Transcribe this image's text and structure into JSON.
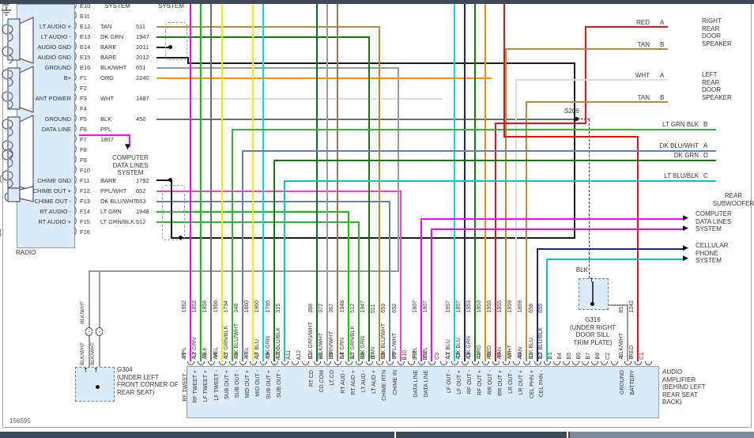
{
  "page": {
    "drawing_number": "156595",
    "system_label_1": "SYSTEM",
    "system_label_2": "SYSTEM"
  },
  "colors": {
    "PPL": "#ff00ff",
    "PPL/WHT": "#ff3fd0",
    "TAN": "#b08d3f",
    "DK GRN": "#0a7d0a",
    "LT GRN": "#00cc00",
    "LT GRN/BLK": "#2db82d",
    "LT GRN BLK": "#2db82d",
    "BARE": "#1a1a1a",
    "BLK": "#6e6e6e",
    "BLK/WHT": "#9a9a9a",
    "ORG": "#ff8c00",
    "WHT": "#dedede",
    "YEL": "#ffe800",
    "LT BLU": "#00dcdc",
    "LT BLU/BLK": "#00c8c8",
    "DK BLU": "#1a2490",
    "DK BLU/WHT": "#6b7fae",
    "DK GRN/WHT": "#0a6e2a",
    "BRN/WHT": "#a07850",
    "RED": "#e81010"
  },
  "radio": {
    "label": "RADIO",
    "computer_note": "COMPUTER\nDATA LINES\nSYSTEM",
    "pins": [
      {
        "id": "E10",
        "label": "",
        "t1": "",
        "t2": ""
      },
      {
        "id": "E11",
        "label": "",
        "t1": "",
        "t2": ""
      },
      {
        "id": "E12",
        "label": "LT AUDIO +",
        "t1": "TAN",
        "t2": "511"
      },
      {
        "id": "E13",
        "label": "LT AUDIO -",
        "t1": "DK GRN",
        "t2": "1947"
      },
      {
        "id": "E14",
        "label": "AUDIO GND",
        "t1": "BARE",
        "t2": "2011"
      },
      {
        "id": "E15",
        "label": "AUDIO GND",
        "t1": "BARE",
        "t2": "2012"
      },
      {
        "id": "E16",
        "label": "GROUND",
        "t1": "BLK/WHT",
        "t2": "651"
      },
      {
        "id": "F1",
        "label": "B+",
        "t1": "ORG",
        "t2": "2240"
      },
      {
        "id": "F2",
        "label": "",
        "t1": "",
        "t2": ""
      },
      {
        "id": "F3",
        "label": "ANT POWER",
        "t1": "WHT",
        "t2": "1487"
      },
      {
        "id": "F4",
        "label": "",
        "t1": "",
        "t2": ""
      },
      {
        "id": "F5",
        "label": "GROUND",
        "t1": "BLK",
        "t2": "450"
      },
      {
        "id": "F6",
        "label": "DATA LINE",
        "t1": "PPL",
        "t2": ""
      },
      {
        "id": "F7",
        "label": "",
        "t1": "1807",
        "t2": ""
      },
      {
        "id": "F8",
        "label": "",
        "t1": "",
        "t2": ""
      },
      {
        "id": "F9",
        "label": "",
        "t1": "",
        "t2": ""
      },
      {
        "id": "F10",
        "label": "",
        "t1": "",
        "t2": ""
      },
      {
        "id": "F11",
        "label": "CHIME GND",
        "t1": "BARE",
        "t2": "1792"
      },
      {
        "id": "F12",
        "label": "CHIME OUT +",
        "t1": "PPL/WHT",
        "t2": "652"
      },
      {
        "id": "F13",
        "label": "CHIME OUT -",
        "t1": "DK BLU/WHT",
        "t2": "653"
      },
      {
        "id": "F14",
        "label": "RT AUDIO -",
        "t1": "LT GRN",
        "t2": "1948"
      },
      {
        "id": "F15",
        "label": "RT AUDIO +",
        "t1": "LT GRN/BLK",
        "t2": "512"
      },
      {
        "id": "F16",
        "label": "",
        "t1": "",
        "t2": ""
      }
    ]
  },
  "amplifier": {
    "label": "AUDIO\nAMPLIFIER\n(BEHIND LEFT\nREAR SEAT\nBACK)",
    "pins": [
      {
        "id": "A1",
        "signal": "RF TWEET -",
        "color": "PPL",
        "circuit": "1952"
      },
      {
        "id": "A2",
        "signal": "RF TWEET +",
        "color": "LT GRN",
        "circuit": "1852"
      },
      {
        "id": "A3",
        "signal": "LF TWEET +",
        "color": "BLK",
        "circuit": "1858"
      },
      {
        "id": "A4",
        "signal": "LF TWEET -",
        "color": "YEL",
        "circuit": "1956"
      },
      {
        "id": "A5",
        "signal": "SUB OUT +",
        "color": "LT GRN/BLK",
        "circuit": "1794"
      },
      {
        "id": "A6",
        "signal": "SUB OUT -",
        "color": "DK BLU/WHT",
        "circuit": "348"
      },
      {
        "id": "A7",
        "signal": "MID OUT +",
        "color": "YEL",
        "circuit": "1860"
      },
      {
        "id": "A8",
        "signal": "MID OUT -",
        "color": "LT BLU",
        "circuit": "1960"
      },
      {
        "id": "A9",
        "signal": "SUB OUT +",
        "color": "DK GRN",
        "circuit": "1795"
      },
      {
        "id": "A10",
        "signal": "SUB OUT -",
        "color": "LT BLU/BLK",
        "circuit": "315"
      },
      {
        "id": "A11",
        "signal": "",
        "color": "",
        "circuit": ""
      },
      {
        "id": "A12",
        "signal": "",
        "color": "",
        "circuit": ""
      },
      {
        "id": "B1",
        "signal": "RT CD",
        "color": "DK GRN/WHT",
        "circuit": "368"
      },
      {
        "id": "B2",
        "signal": "CD COM",
        "color": "BLK/WHT",
        "circuit": "372"
      },
      {
        "id": "B3",
        "signal": "LT CD",
        "color": "BRN/WHT",
        "circuit": "367"
      },
      {
        "id": "B4",
        "signal": "RT AUD -",
        "color": "LT GRN",
        "circuit": "1948"
      },
      {
        "id": "B5",
        "signal": "RT AUD +",
        "color": "LT GRN/BLK",
        "circuit": "512"
      },
      {
        "id": "B6",
        "signal": "LT AUD -",
        "color": "DK GRN",
        "circuit": "1947"
      },
      {
        "id": "B7",
        "signal": "LT AUD +",
        "color": "TAN",
        "circuit": "511"
      },
      {
        "id": "B8",
        "signal": "CHIME RTN",
        "color": "DK BLU/WHT",
        "circuit": "653"
      },
      {
        "id": "B9",
        "signal": "CHIME IN",
        "color": "PPL/WHT",
        "circuit": "652"
      },
      {
        "id": "B10",
        "signal": "",
        "color": "",
        "circuit": ""
      },
      {
        "id": "B11",
        "signal": "DATA LINE",
        "color": "PPL",
        "circuit": "1807"
      },
      {
        "id": "B12",
        "signal": "DATA LINE",
        "color": "PPL",
        "circuit": "1807"
      },
      {
        "id": "C3",
        "signal": "",
        "color": "",
        "circuit": ""
      },
      {
        "id": "A1",
        "signal": "LF OUT -",
        "color": "LT BLU",
        "circuit": "1957"
      },
      {
        "id": "A2",
        "signal": "LF OUT +",
        "color": "DK BLU",
        "circuit": "1857"
      },
      {
        "id": "A3",
        "signal": "RF OUT -",
        "color": "DK GRN",
        "circuit": "1953"
      },
      {
        "id": "A4",
        "signal": "RF OUT +",
        "color": "ORG",
        "circuit": "1853"
      },
      {
        "id": "A5",
        "signal": "RR OUT -",
        "color": "RED",
        "circuit": "1955"
      },
      {
        "id": "A6",
        "signal": "RR OUT +",
        "color": "TAN",
        "circuit": "1855"
      },
      {
        "id": "A7",
        "signal": "LR OUT -",
        "color": "WHT",
        "circuit": "1959"
      },
      {
        "id": "A8",
        "signal": "LR OUT +",
        "color": "TAN",
        "circuit": "1859"
      },
      {
        "id": "B1",
        "signal": "CEL PHN +",
        "color": "DK BLU",
        "circuit": "658"
      },
      {
        "id": "B2",
        "signal": "CEL PHN -",
        "color": "LT BLU/BLK",
        "circuit": "659"
      },
      {
        "id": "B3",
        "signal": "",
        "color": "",
        "circuit": ""
      },
      {
        "id": "B4",
        "signal": "",
        "color": "",
        "circuit": ""
      },
      {
        "id": "B5",
        "signal": "",
        "color": "",
        "circuit": ""
      },
      {
        "id": "B6",
        "signal": "",
        "color": "",
        "circuit": ""
      },
      {
        "id": "B7",
        "signal": "",
        "color": "",
        "circuit": ""
      },
      {
        "id": "B8",
        "signal": "",
        "color": "",
        "circuit": ""
      },
      {
        "id": "C2",
        "signal": "",
        "color": "",
        "circuit": ""
      },
      {
        "id": "A",
        "signal": "GROUND",
        "color": "BLK/WHT",
        "circuit": "851"
      },
      {
        "id": "B",
        "signal": "BATTERY",
        "color": "RED",
        "circuit": "1242"
      },
      {
        "id": "C1",
        "signal": "",
        "color": "",
        "circuit": ""
      }
    ]
  },
  "speakers": {
    "right_rear": {
      "label": "RIGHT\nREAR\nDOOR\nSPEAKER",
      "wires": [
        {
          "name": "RED",
          "pin": "A"
        },
        {
          "name": "TAN",
          "pin": "B"
        }
      ]
    },
    "left_rear": {
      "label": "LEFT\nREAR\nDOOR\nSPEAKER",
      "wires": [
        {
          "name": "WHT",
          "pin": "A"
        },
        {
          "name": "TAN",
          "pin": "B"
        }
      ]
    },
    "subwoofer": {
      "label": "REAR\nSUBWOOFER",
      "wires": [
        {
          "name": "LT GRN BLK",
          "pin": "B"
        },
        {
          "name": "DK BLU/WHT",
          "pin": "A"
        },
        {
          "name": "DK GRN",
          "pin": "D"
        },
        {
          "name": "LT BLU/BLK",
          "pin": "C"
        }
      ]
    }
  },
  "systems": {
    "computer": "COMPUTER\nDATA LINES\nSYSTEM",
    "cellular": "CELLULAR\nPHONE\nSYSTEM"
  },
  "grounds": {
    "g304": {
      "label": "G304\n(UNDER LEFT\nFRONT CORNER OF\nREAR SEAT)",
      "wire_label": "BLK/WHT"
    },
    "g316": {
      "label": "G316\n(UNDER RIGHT\nDOOR SILL\nTRIM PLATE)",
      "wire_label": "BLK"
    }
  },
  "splices": {
    "s206": "S206"
  }
}
